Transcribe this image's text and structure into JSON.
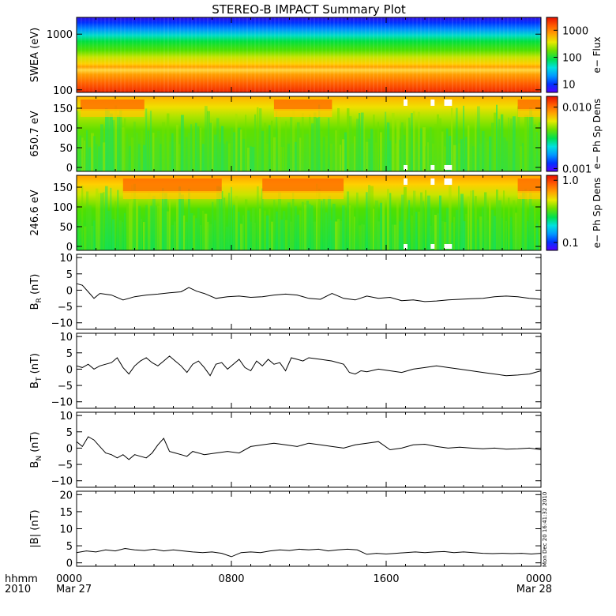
{
  "title": "STEREO-B IMPACT Summary Plot",
  "footer": {
    "row1_label": "hhmm",
    "row2_label": "2010",
    "x_ticks": [
      "0000",
      "0800",
      "1600",
      "0000"
    ],
    "date_labels": [
      "Mar 27",
      "",
      "",
      "Mar 28"
    ]
  },
  "timestamp": "Mon Dec 20 16:41:32 2010",
  "colors": {
    "colormap": [
      "#5500ff",
      "#0033ff",
      "#0099ff",
      "#00e0e0",
      "#00e050",
      "#70e000",
      "#e8e800",
      "#ffa000",
      "#ff5a00",
      "#e81000"
    ],
    "line": "#000000",
    "missing": "#ffffff"
  },
  "chart_data": [
    {
      "type": "heatmap",
      "name": "swea-spectrogram",
      "ylabel": "SWEA (eV)",
      "yscale": "log",
      "ylim": [
        90,
        2000
      ],
      "yticks": [
        {
          "value": 100,
          "label": "100"
        },
        {
          "value": 1000,
          "label": "1000"
        }
      ],
      "colorbar": {
        "label": "e− Flux",
        "scale": "log",
        "range": [
          5,
          3000
        ],
        "ticks": [
          {
            "value": 10,
            "label": "10"
          },
          {
            "value": 100,
            "label": "100"
          },
          {
            "value": 1000,
            "label": "1000"
          }
        ]
      }
    },
    {
      "type": "heatmap",
      "name": "pad-650-spectrogram",
      "ylabel": "650.7 eV",
      "ylim": [
        -10,
        180
      ],
      "yticks": [
        {
          "value": 0,
          "label": "0"
        },
        {
          "value": 50,
          "label": "50"
        },
        {
          "value": 100,
          "label": "100"
        },
        {
          "value": 150,
          "label": "150"
        }
      ],
      "colorbar": {
        "label": "e− Ph Sp Dens",
        "scale": "log",
        "range": [
          0.0009,
          0.015
        ],
        "ticks": [
          {
            "value": 0.001,
            "label": "0.001"
          },
          {
            "value": 0.01,
            "label": "0.010"
          }
        ]
      }
    },
    {
      "type": "heatmap",
      "name": "pad-246-spectrogram",
      "ylabel": "246.6 eV",
      "ylim": [
        -10,
        180
      ],
      "yticks": [
        {
          "value": 0,
          "label": "0"
        },
        {
          "value": 50,
          "label": "50"
        },
        {
          "value": 100,
          "label": "100"
        },
        {
          "value": 150,
          "label": "150"
        }
      ],
      "colorbar": {
        "label": "e− Ph Sp Dens",
        "scale": "log",
        "range": [
          0.075,
          1.2
        ],
        "ticks": [
          {
            "value": 0.1,
            "label": "0.1"
          },
          {
            "value": 1.0,
            "label": "1.0"
          }
        ]
      }
    },
    {
      "type": "line",
      "name": "br-panel",
      "ylabel": "B_R (nT)",
      "ylabel_main": "B",
      "ylabel_sub": "R",
      "ylabel_unit": " (nT)",
      "ylim": [
        -12,
        11
      ],
      "yticks": [
        {
          "value": -10,
          "label": "−10"
        },
        {
          "value": -5,
          "label": "−5"
        },
        {
          "value": 0,
          "label": "0"
        },
        {
          "value": 5,
          "label": "5"
        },
        {
          "value": 10,
          "label": "10"
        }
      ],
      "x": [
        0.0,
        0.3,
        0.6,
        0.9,
        1.2,
        1.8,
        2.4,
        3.0,
        3.6,
        4.2,
        4.8,
        5.4,
        5.8,
        6.2,
        6.6,
        7.2,
        7.8,
        8.4,
        9.0,
        9.6,
        10.2,
        10.8,
        11.4,
        12.0,
        12.6,
        13.2,
        13.8,
        14.4,
        15.0,
        15.6,
        16.2,
        16.8,
        17.4,
        18.0,
        18.6,
        19.2,
        19.8,
        20.4,
        21.0,
        21.6,
        22.2,
        22.8,
        23.4,
        24.0
      ],
      "values": [
        2.0,
        1.5,
        -0.5,
        -2.5,
        -1.0,
        -1.5,
        -3.0,
        -2.0,
        -1.5,
        -1.2,
        -0.8,
        -0.5,
        0.8,
        -0.3,
        -1.0,
        -2.5,
        -2.0,
        -1.8,
        -2.2,
        -2.0,
        -1.5,
        -1.2,
        -1.5,
        -2.5,
        -2.8,
        -1.0,
        -2.5,
        -3.0,
        -1.8,
        -2.5,
        -2.2,
        -3.2,
        -3.0,
        -3.5,
        -3.3,
        -3.0,
        -2.8,
        -2.6,
        -2.5,
        -2.0,
        -1.8,
        -2.0,
        -2.5,
        -2.8
      ]
    },
    {
      "type": "line",
      "name": "bt-panel",
      "ylabel": "B_T (nT)",
      "ylabel_main": "B",
      "ylabel_sub": "T",
      "ylabel_unit": " (nT)",
      "ylim": [
        -12,
        11
      ],
      "yticks": [
        {
          "value": -10,
          "label": "−10"
        },
        {
          "value": -5,
          "label": "−5"
        },
        {
          "value": 0,
          "label": "0"
        },
        {
          "value": 5,
          "label": "5"
        },
        {
          "value": 10,
          "label": "10"
        }
      ],
      "x": [
        0.0,
        0.3,
        0.6,
        0.9,
        1.2,
        1.5,
        1.8,
        2.1,
        2.4,
        2.7,
        3.0,
        3.3,
        3.6,
        3.9,
        4.2,
        4.5,
        4.8,
        5.1,
        5.4,
        5.7,
        6.0,
        6.3,
        6.6,
        6.9,
        7.2,
        7.5,
        7.8,
        8.1,
        8.4,
        8.7,
        9.0,
        9.3,
        9.6,
        9.9,
        10.2,
        10.5,
        10.8,
        11.1,
        11.4,
        11.7,
        12.0,
        12.6,
        13.2,
        13.8,
        14.1,
        14.4,
        14.7,
        15.0,
        15.6,
        16.2,
        16.8,
        17.4,
        18.0,
        18.6,
        19.2,
        19.8,
        20.4,
        21.0,
        21.6,
        22.2,
        22.8,
        23.4,
        24.0
      ],
      "values": [
        1.0,
        0.5,
        1.5,
        0.0,
        1.0,
        1.5,
        2.0,
        3.5,
        0.5,
        -1.5,
        1.0,
        2.5,
        3.5,
        2.0,
        1.0,
        2.5,
        4.0,
        2.5,
        1.0,
        -1.0,
        1.5,
        2.5,
        0.5,
        -2.0,
        1.5,
        2.0,
        0.0,
        1.5,
        3.0,
        0.5,
        -0.5,
        2.5,
        1.0,
        3.0,
        1.5,
        2.0,
        -0.5,
        3.5,
        3.0,
        2.5,
        3.5,
        3.0,
        2.5,
        1.5,
        -1.0,
        -1.5,
        -0.5,
        -0.8,
        0.0,
        -0.5,
        -1.0,
        0.0,
        0.5,
        1.0,
        0.5,
        0.0,
        -0.5,
        -1.0,
        -1.5,
        -2.0,
        -1.8,
        -1.5,
        -0.5
      ]
    },
    {
      "type": "line",
      "name": "bn-panel",
      "ylabel": "B_N (nT)",
      "ylabel_main": "B",
      "ylabel_sub": "N",
      "ylabel_unit": " (nT)",
      "ylim": [
        -12,
        11
      ],
      "yticks": [
        {
          "value": -10,
          "label": "−10"
        },
        {
          "value": -5,
          "label": "−5"
        },
        {
          "value": 0,
          "label": "0"
        },
        {
          "value": 5,
          "label": "5"
        },
        {
          "value": 10,
          "label": "10"
        }
      ],
      "x": [
        0.0,
        0.3,
        0.6,
        0.9,
        1.2,
        1.5,
        1.8,
        2.1,
        2.4,
        2.7,
        3.0,
        3.3,
        3.6,
        3.9,
        4.2,
        4.5,
        4.8,
        5.1,
        5.4,
        5.7,
        6.0,
        6.6,
        7.2,
        7.8,
        8.4,
        9.0,
        9.6,
        10.2,
        10.8,
        11.4,
        12.0,
        12.6,
        13.2,
        13.8,
        14.4,
        15.0,
        15.6,
        16.2,
        16.8,
        17.4,
        18.0,
        18.6,
        19.2,
        19.8,
        20.4,
        21.0,
        21.6,
        22.2,
        22.8,
        23.4,
        24.0
      ],
      "values": [
        2.0,
        0.5,
        3.5,
        2.5,
        0.5,
        -1.5,
        -2.0,
        -3.0,
        -2.0,
        -3.5,
        -2.0,
        -2.5,
        -3.0,
        -1.5,
        1.0,
        3.0,
        -1.0,
        -1.5,
        -2.0,
        -2.5,
        -1.0,
        -2.0,
        -1.5,
        -1.0,
        -1.5,
        0.5,
        1.0,
        1.5,
        1.0,
        0.5,
        1.5,
        1.0,
        0.5,
        0.0,
        1.0,
        1.5,
        2.0,
        -0.5,
        0.0,
        1.0,
        1.2,
        0.5,
        0.0,
        0.3,
        0.0,
        -0.2,
        0.0,
        -0.3,
        -0.2,
        0.0,
        -0.5
      ]
    },
    {
      "type": "line",
      "name": "btotal-panel",
      "ylabel": "|B| (nT)",
      "ylabel_main": "|B|",
      "ylabel_sub": "",
      "ylabel_unit": " (nT)",
      "ylim": [
        -1,
        21
      ],
      "yticks": [
        {
          "value": 0,
          "label": "0"
        },
        {
          "value": 5,
          "label": "5"
        },
        {
          "value": 10,
          "label": "10"
        },
        {
          "value": 15,
          "label": "15"
        },
        {
          "value": 20,
          "label": "20"
        }
      ],
      "x": [
        0.0,
        0.5,
        1.0,
        1.5,
        2.0,
        2.5,
        3.0,
        3.5,
        4.0,
        4.5,
        5.0,
        5.5,
        6.0,
        6.5,
        7.0,
        7.5,
        8.0,
        8.5,
        9.0,
        9.5,
        10.0,
        10.5,
        11.0,
        11.5,
        12.0,
        12.5,
        13.0,
        13.5,
        14.0,
        14.5,
        15.0,
        15.5,
        16.0,
        16.5,
        17.0,
        17.5,
        18.0,
        18.5,
        19.0,
        19.5,
        20.0,
        20.5,
        21.0,
        21.5,
        22.0,
        22.5,
        23.0,
        23.5,
        24.0
      ],
      "values": [
        3.0,
        3.5,
        3.2,
        3.8,
        3.5,
        4.2,
        3.8,
        3.6,
        4.0,
        3.5,
        3.8,
        3.5,
        3.2,
        3.0,
        3.2,
        2.8,
        1.8,
        3.0,
        3.2,
        3.0,
        3.5,
        3.8,
        3.6,
        4.0,
        3.8,
        4.0,
        3.5,
        3.8,
        4.0,
        3.8,
        2.5,
        2.8,
        2.6,
        2.8,
        3.0,
        3.2,
        3.0,
        3.2,
        3.3,
        3.0,
        3.2,
        3.0,
        2.8,
        2.7,
        2.8,
        2.7,
        2.8,
        2.6,
        2.8
      ]
    }
  ]
}
